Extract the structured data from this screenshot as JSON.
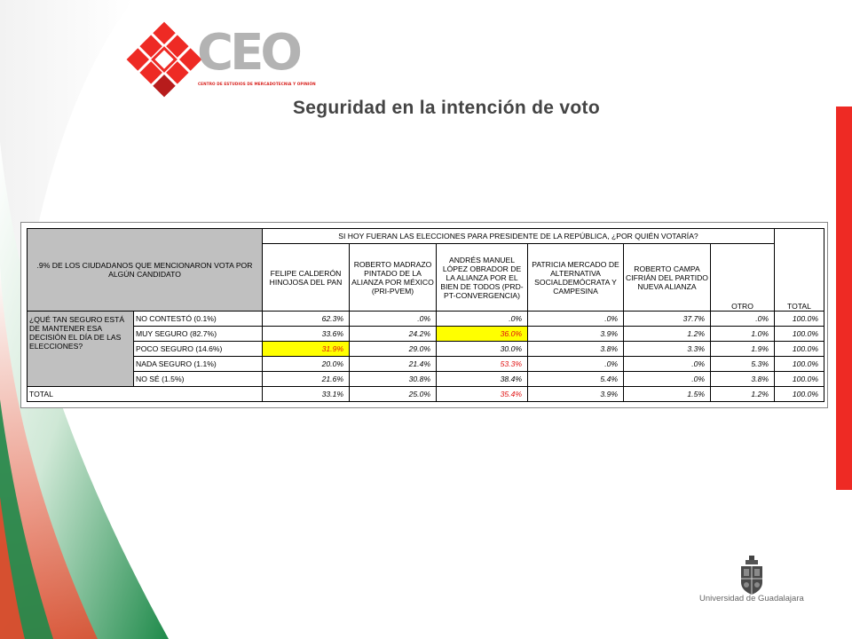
{
  "logo": {
    "name": "CEO",
    "subtitle": "CENTRO DE ESTUDIOS DE MERCADOTECNIA Y OPINIÓN"
  },
  "title": "Seguridad en la intención de voto",
  "table": {
    "corner_label": ".9% DE LOS CIUDADANOS QUE MENCIONARON VOTA POR ALGÚN CANDIDATO",
    "question_header": "SI HOY FUERAN LAS ELECCIONES PARA PRESIDENTE DE LA REPÚBLICA, ¿POR QUIÉN VOTARÍA?",
    "columns": [
      "FELIPE CALDERÓN HINOJOSA DEL PAN",
      "ROBERTO MADRAZO PINTADO DE LA ALIANZA POR MÉXICO (PRI-PVEM)",
      "ANDRÉS MANUEL LÓPEZ OBRADOR DE LA ALIANZA POR EL BIEN DE TODOS (PRD-PT-CONVERGENCIA)",
      "PATRICIA MERCADO DE ALTERNATIVA SOCIALDEMÓCRATA Y CAMPESINA",
      "ROBERTO CAMPA CIFRIÁN DEL PARTIDO NUEVA ALIANZA",
      "OTRO",
      "TOTAL"
    ],
    "row_question": "¿QUÉ TAN SEGURO ESTÁ DE MANTENER ESA DECISIÓN EL DÍA DE LAS ELECCIONES?",
    "rows": [
      {
        "label": "NO CONTESTÓ (0.1%)",
        "values": [
          "62.3%",
          ".0%",
          ".0%",
          ".0%",
          "37.7%",
          ".0%",
          "100.0%"
        ]
      },
      {
        "label": "MUY SEGURO (82.7%)",
        "values": [
          "33.6%",
          "24.2%",
          "36.0%",
          "3.9%",
          "1.2%",
          "1.0%",
          "100.0%"
        ]
      },
      {
        "label": "POCO SEGURO (14.6%)",
        "values": [
          "31.9%",
          "29.0%",
          "30.0%",
          "3.8%",
          "3.3%",
          "1.9%",
          "100.0%"
        ]
      },
      {
        "label": "NADA SEGURO (1.1%)",
        "values": [
          "20.0%",
          "21.4%",
          "53.3%",
          ".0%",
          ".0%",
          "5.3%",
          "100.0%"
        ]
      },
      {
        "label": "NO SÉ (1.5%)",
        "values": [
          "21.6%",
          "30.8%",
          "38.4%",
          "5.4%",
          ".0%",
          "3.8%",
          "100.0%"
        ]
      }
    ],
    "total_row": {
      "label": "TOTAL",
      "values": [
        "33.1%",
        "25.0%",
        "35.4%",
        "3.9%",
        "1.5%",
        "1.2%",
        "100.0%"
      ]
    }
  },
  "footer": {
    "university": "Universidad de Guadalajara"
  },
  "colors": {
    "accent_red": "#ee2a24",
    "green": "#1e8a4a",
    "highlight_yellow": "#ffff00",
    "value_red": "#e01010",
    "header_gray": "#c0c0c0"
  }
}
